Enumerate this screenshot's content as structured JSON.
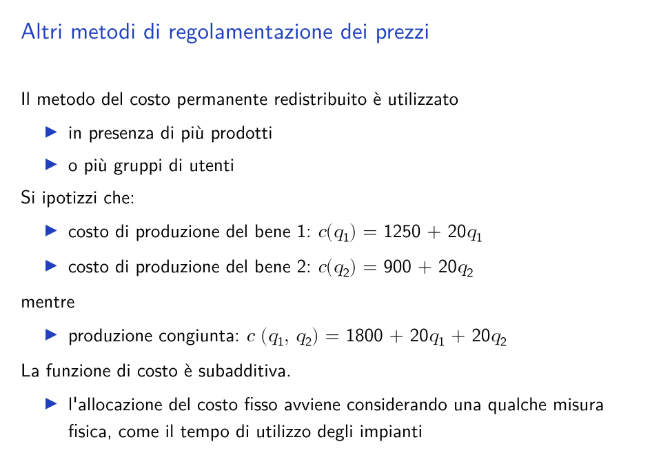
{
  "colors": {
    "accent": "#2040c0",
    "text": "#000000",
    "background": "#ffffff"
  },
  "title": "Altri metodi di regolamentazione dei prezzi",
  "intro": "Il metodo del costo permanente redistribuito è utilizzato",
  "bullets1": [
    "in presenza di più prodotti",
    "o più gruppi di utenti"
  ],
  "hypo": "Si ipotizzi che:",
  "costs": [
    {
      "prefix": "costo di produzione del bene 1: ",
      "fn": "c",
      "arg": "q",
      "argSub": "1",
      "rhs_const": "1250",
      "rhs_coef": "20",
      "rhs_var": "q",
      "rhs_sub": "1"
    },
    {
      "prefix": "costo di produzione del bene 2: ",
      "fn": "c",
      "arg": "q",
      "argSub": "2",
      "rhs_const": "900",
      "rhs_coef": "20",
      "rhs_var": "q",
      "rhs_sub": "2"
    }
  ],
  "mentre": "mentre",
  "joint": {
    "prefix": "produzione congiunta: ",
    "fn": "c",
    "arg1": "q",
    "arg1Sub": "1",
    "arg2": "q",
    "arg2Sub": "2",
    "rhs_const": "1800",
    "terms": [
      {
        "coef": "20",
        "var": "q",
        "sub": "1"
      },
      {
        "coef": "20",
        "var": "q",
        "sub": "2"
      }
    ]
  },
  "subadd": "La funzione di costo è subadditiva.",
  "alloc": "l'allocazione del costo fisso avviene considerando una qualche misura fisica, come il tempo di utilizzo degli impianti"
}
